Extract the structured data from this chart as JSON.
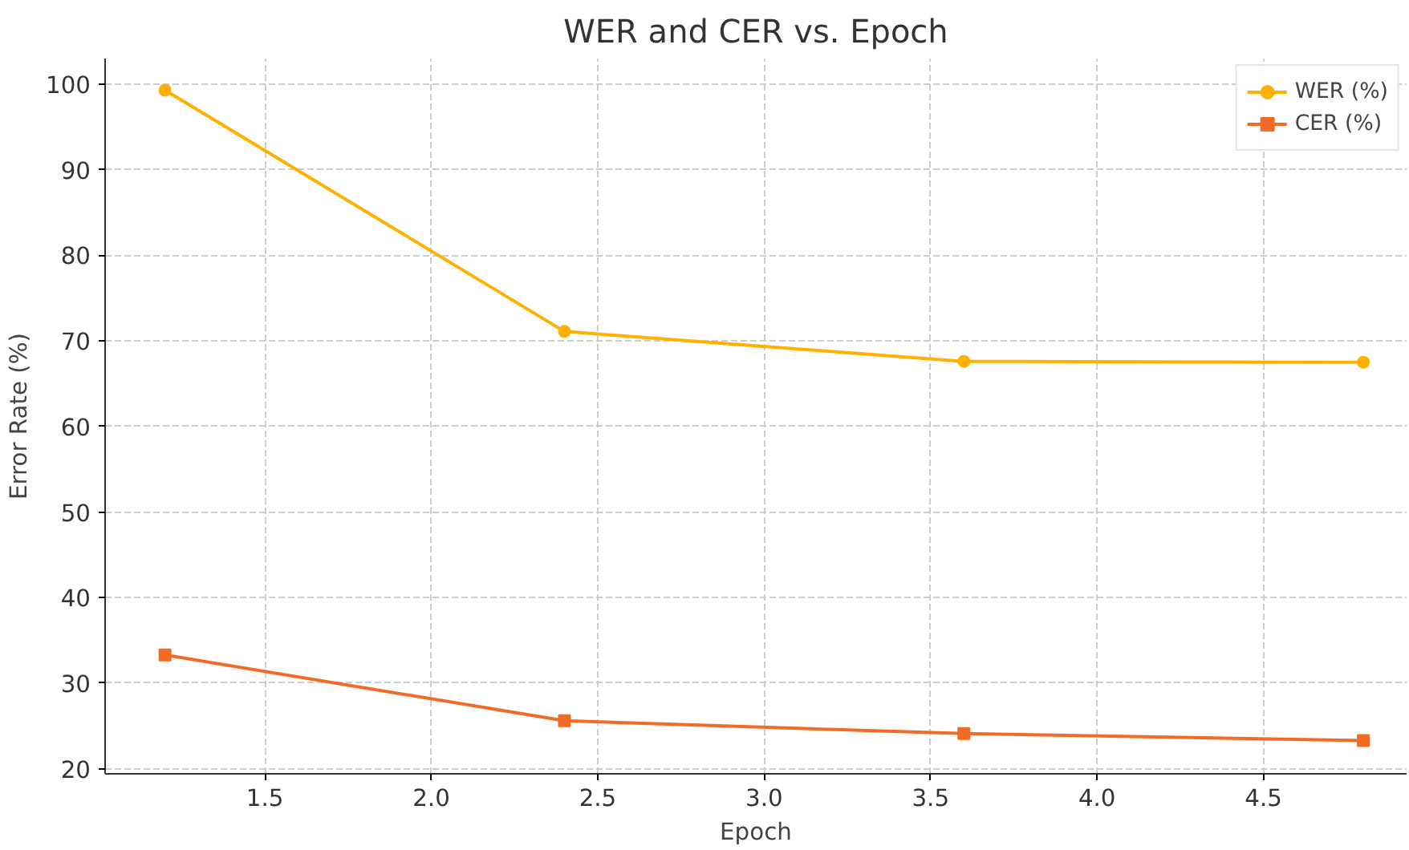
{
  "chart_data": {
    "type": "line",
    "title": "WER and CER vs. Epoch",
    "xlabel": "Epoch",
    "ylabel": "Error Rate (%)",
    "x": [
      1.2,
      2.4,
      3.6,
      4.8
    ],
    "series": [
      {
        "name": "WER (%)",
        "color": "#ffb000",
        "marker": "circle",
        "values": [
          99.3,
          71.1,
          67.6,
          67.5
        ]
      },
      {
        "name": "CER (%)",
        "color": "#f26b25",
        "marker": "square",
        "values": [
          33.3,
          25.6,
          24.1,
          23.3
        ]
      }
    ],
    "xlim": [
      1.02,
      4.93
    ],
    "ylim": [
      19.4,
      103
    ],
    "xticks": [
      {
        "value": 1.5,
        "label": "1.5"
      },
      {
        "value": 2.0,
        "label": "2.0"
      },
      {
        "value": 2.5,
        "label": "2.5"
      },
      {
        "value": 3.0,
        "label": "3.0"
      },
      {
        "value": 3.5,
        "label": "3.5"
      },
      {
        "value": 4.0,
        "label": "4.0"
      },
      {
        "value": 4.5,
        "label": "4.5"
      }
    ],
    "yticks": [
      20,
      30,
      40,
      50,
      60,
      70,
      80,
      90,
      100
    ],
    "grid": true,
    "legend": "top right",
    "line_style": "solid"
  }
}
